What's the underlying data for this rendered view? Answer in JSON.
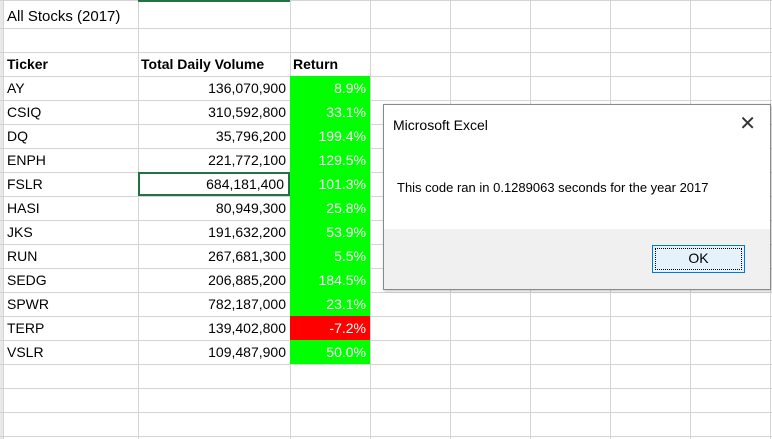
{
  "sheet": {
    "title": "All Stocks (2017)",
    "headers": {
      "ticker": "Ticker",
      "volume": "Total Daily Volume",
      "return": "Return"
    },
    "rows": [
      {
        "ticker": "AY",
        "volume": "136,070,900",
        "return": "8.9%",
        "status": "positive"
      },
      {
        "ticker": "CSIQ",
        "volume": "310,592,800",
        "return": "33.1%",
        "status": "positive"
      },
      {
        "ticker": "DQ",
        "volume": "35,796,200",
        "return": "199.4%",
        "status": "positive"
      },
      {
        "ticker": "ENPH",
        "volume": "221,772,100",
        "return": "129.5%",
        "status": "positive"
      },
      {
        "ticker": "FSLR",
        "volume": "684,181,400",
        "return": "101.3%",
        "status": "positive"
      },
      {
        "ticker": "HASI",
        "volume": "80,949,300",
        "return": "25.8%",
        "status": "positive"
      },
      {
        "ticker": "JKS",
        "volume": "191,632,200",
        "return": "53.9%",
        "status": "positive"
      },
      {
        "ticker": "RUN",
        "volume": "267,681,300",
        "return": "5.5%",
        "status": "positive"
      },
      {
        "ticker": "SEDG",
        "volume": "206,885,200",
        "return": "184.5%",
        "status": "positive"
      },
      {
        "ticker": "SPWR",
        "volume": "782,187,000",
        "return": "23.1%",
        "status": "positive"
      },
      {
        "ticker": "TERP",
        "volume": "139,402,800",
        "return": "-7.2%",
        "status": "negative"
      },
      {
        "ticker": "VSLR",
        "volume": "109,487,900",
        "return": "50.0%",
        "status": "positive"
      }
    ],
    "colors": {
      "positive": "#00ff00",
      "negative": "#ff0000",
      "selection": "#217346"
    }
  },
  "dialog": {
    "title": "Microsoft Excel",
    "message": "This code ran in 0.1289063 seconds for the year 2017",
    "ok_label": "OK",
    "close_glyph": "✕"
  }
}
